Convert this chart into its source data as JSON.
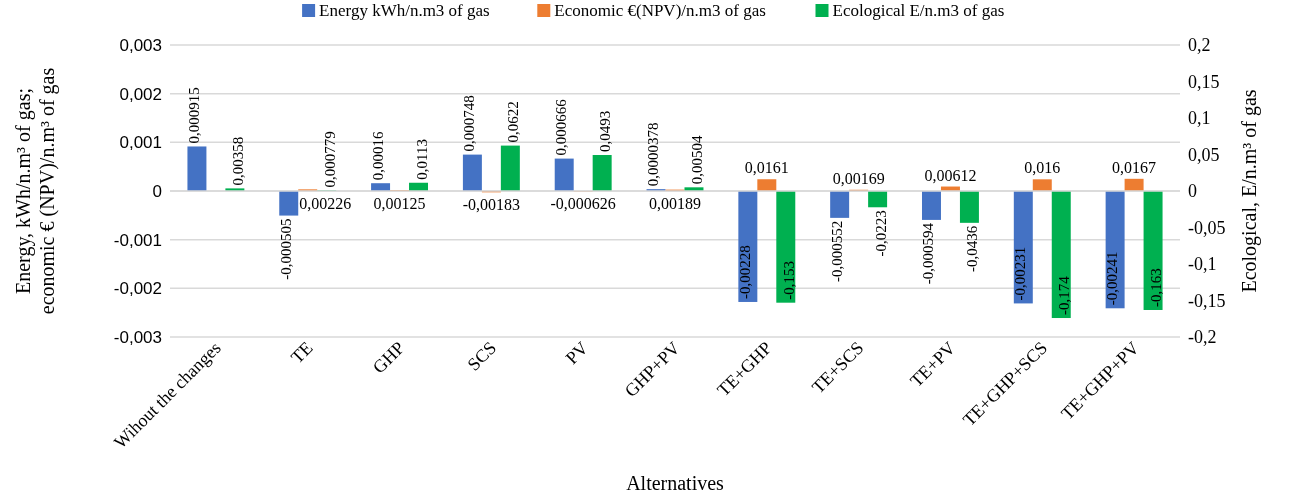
{
  "chart_data": {
    "type": "bar",
    "xlabel": "Alternatives",
    "ylabel": "Energy, kWh/n.m³ of gas; economic € (NPV)/n.m³ of gas",
    "y2label": "Ecological,  E/n.m³ of gas",
    "categories": [
      "Wihout the changes",
      "TE",
      "GHP",
      "SCS",
      "PV",
      "GHP+PV",
      "TE+GHP",
      "TE+SCS",
      "TE+PV",
      "TE+GHP+SCS",
      "TE+GHP+PV"
    ],
    "series": [
      {
        "name": "Energy kWh/n.m3 of gas",
        "color": "#4472c4",
        "values": [
          0.000915,
          -0.000505,
          0.00016,
          0.000748,
          0.000666,
          3.78e-05,
          -0.00228,
          -0.000552,
          -0.000594,
          -0.00231,
          -0.00241
        ],
        "value_labels": [
          "0,000915",
          "-0,000505",
          "0,00016",
          "0,000748",
          "0,000666",
          "0,0000378",
          "-0,00228",
          "-0,000552",
          "-0,000594",
          "-0,00231",
          "-0,00241"
        ]
      },
      {
        "name": "Economic €(NPV)/n.m3 of gas",
        "color": "#ed7d31",
        "axis": "y2",
        "values": [
          null,
          0.00226,
          0.00125,
          -0.00183,
          -0.000626,
          0.00189,
          0.0161,
          0.00169,
          0.00612,
          0.016,
          0.0167
        ],
        "value_labels": [
          null,
          "0,00226",
          "0,00125",
          "-0,00183",
          "-0,000626",
          "0,00189",
          "0,0161",
          "0,00169",
          "0,00612",
          "0,016",
          "0,0167"
        ]
      },
      {
        "name": "Ecological E/n.m3 of gas",
        "color": "#00b050",
        "axis": "y2",
        "values": [
          0.00358,
          0.000779,
          0.0113,
          0.0622,
          0.0493,
          0.00504,
          -0.153,
          -0.0223,
          -0.0436,
          -0.174,
          -0.163
        ],
        "value_labels": [
          "0,00358",
          "0,000779",
          "0,0113",
          "0,0622",
          "0,0493",
          "0,00504",
          "-0,153",
          "-0,0223",
          "-0,0436",
          "-0,174",
          "-0,163"
        ]
      }
    ],
    "ylim": [
      -0.003,
      0.003
    ],
    "yticks": [
      {
        "value": -0.003,
        "label": "-0,003"
      },
      {
        "value": -0.002,
        "label": "-0,002"
      },
      {
        "value": -0.001,
        "label": "-0,001"
      },
      0,
      {
        "value": 0.001,
        "label": "0,001"
      },
      {
        "value": 0.002,
        "label": "0,002"
      },
      {
        "value": 0.003,
        "label": "0,003"
      }
    ],
    "y2lim": [
      -0.2,
      0.2
    ],
    "y2ticks": [
      {
        "value": -0.2,
        "label": "-0,2"
      },
      {
        "value": -0.15,
        "label": "-0,15"
      },
      {
        "value": -0.1,
        "label": "-0,1"
      },
      {
        "value": -0.05,
        "label": "-0,05"
      },
      0,
      {
        "value": 0.05,
        "label": "0,05"
      },
      {
        "value": 0.1,
        "label": "0,1"
      },
      {
        "value": 0.15,
        "label": "0,15"
      },
      {
        "value": 0.2,
        "label": "0,2"
      }
    ],
    "grid": "y",
    "legend": "top"
  }
}
